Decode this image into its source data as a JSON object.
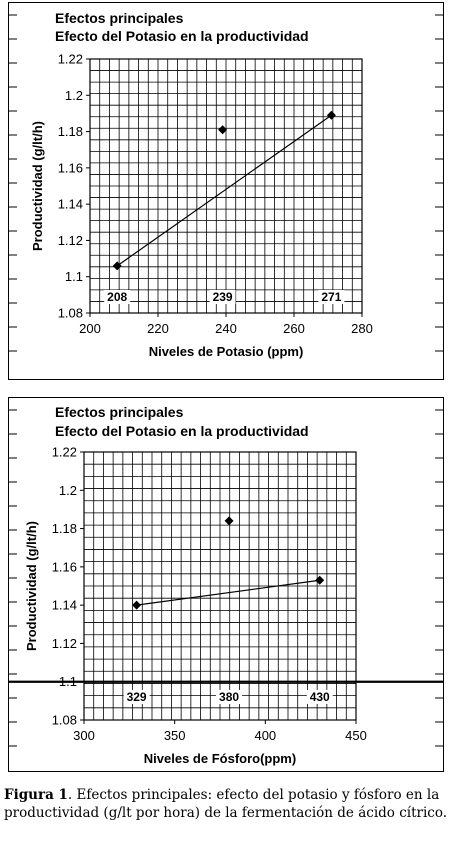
{
  "chart_data": [
    {
      "type": "scatter",
      "title": "Efectos principales",
      "subtitle": "Efecto del Potasio en la productividad",
      "xlabel": "Niveles de Potasio (ppm)",
      "ylabel": "Productividad (g/lt/h)",
      "xlim": [
        200,
        280
      ],
      "ylim": [
        1.08,
        1.22
      ],
      "xticks": [
        200,
        220,
        240,
        260,
        280
      ],
      "xtick_labels": [
        "200",
        "220",
        "240",
        "260",
        "280"
      ],
      "yticks": [
        1.08,
        1.1,
        1.12,
        1.14,
        1.16,
        1.18,
        1.2,
        1.22
      ],
      "ytick_labels": [
        "1.08",
        "1.1",
        "1.12",
        "1.14",
        "1.16",
        "1.18",
        "1.2",
        "1.22"
      ],
      "grid": true,
      "points": [
        {
          "x": 208,
          "y": 1.106
        },
        {
          "x": 239,
          "y": 1.181
        },
        {
          "x": 271,
          "y": 1.189
        }
      ],
      "trend_line": [
        {
          "x": 208,
          "y": 1.106
        },
        {
          "x": 271,
          "y": 1.189
        }
      ],
      "annotations": [
        {
          "x": 208,
          "text": "208"
        },
        {
          "x": 239,
          "text": "239"
        },
        {
          "x": 271,
          "text": "271"
        }
      ]
    },
    {
      "type": "scatter",
      "title": "Efectos principales",
      "subtitle": "Efecto del Potasio en la productividad",
      "xlabel": "Niveles de Fósforo(ppm)",
      "ylabel": "Productividad (g/lt/h)",
      "xlim": [
        300,
        450
      ],
      "ylim": [
        1.08,
        1.22
      ],
      "xticks": [
        300,
        350,
        400,
        450
      ],
      "xtick_labels": [
        "300",
        "350",
        "400",
        "450"
      ],
      "yticks": [
        1.08,
        1.1,
        1.12,
        1.14,
        1.16,
        1.18,
        1.2,
        1.22
      ],
      "ytick_labels": [
        "1.08",
        "1.1",
        "1.12",
        "1.14",
        "1.16",
        "1.18",
        "1.2",
        "1.22"
      ],
      "grid": true,
      "reference_line_y": 1.1,
      "points": [
        {
          "x": 329,
          "y": 1.14
        },
        {
          "x": 380,
          "y": 1.184
        },
        {
          "x": 430,
          "y": 1.153
        }
      ],
      "trend_line": [
        {
          "x": 329,
          "y": 1.14
        },
        {
          "x": 430,
          "y": 1.153
        }
      ],
      "annotations": [
        {
          "x": 329,
          "text": "329"
        },
        {
          "x": 380,
          "text": "380"
        },
        {
          "x": 430,
          "text": "430"
        }
      ]
    }
  ],
  "caption": {
    "lead": "Figura 1",
    "text": ". Efectos principales: efecto del potasio y fósforo en la  productividad (g/lt por hora) de la fermentación de ácido cítrico."
  }
}
